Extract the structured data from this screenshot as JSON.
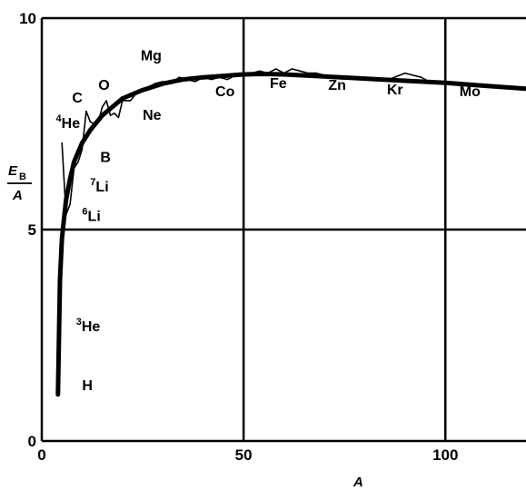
{
  "chart_data": {
    "type": "line",
    "xlabel": "A",
    "ylabel": "E_B / A",
    "ylabel_parts": {
      "numerator": "E",
      "subscript": "B",
      "denominator": "A"
    },
    "xlim": [
      0,
      120
    ],
    "ylim": [
      0,
      10
    ],
    "x_ticks": [
      "0",
      "50",
      "100"
    ],
    "y_ticks": [
      "0",
      "5",
      "10"
    ],
    "x_tick_values": [
      0,
      50,
      100
    ],
    "y_tick_values": [
      0,
      5,
      10
    ],
    "grid_x": [
      50,
      100
    ],
    "grid_y": [
      5
    ],
    "series": [
      {
        "style": "smooth-thick",
        "x": [
          4,
          4.5,
          5,
          6,
          7,
          8,
          10,
          12,
          15,
          20,
          25,
          30,
          35,
          40,
          50,
          55,
          60,
          70,
          80,
          90,
          100,
          110,
          120
        ],
        "y": [
          1.1,
          3.8,
          4.8,
          5.7,
          6.2,
          6.6,
          7.05,
          7.35,
          7.7,
          8.1,
          8.3,
          8.45,
          8.55,
          8.6,
          8.67,
          8.68,
          8.67,
          8.62,
          8.57,
          8.52,
          8.47,
          8.4,
          8.33
        ]
      },
      {
        "style": "thin-measured",
        "x": [
          5,
          6,
          7,
          8,
          9,
          10,
          11,
          12,
          13,
          14,
          15,
          16,
          17,
          18,
          19,
          20,
          22,
          24,
          26,
          28,
          30,
          32,
          34,
          36,
          38,
          40,
          42,
          44,
          46,
          48,
          50,
          52,
          54,
          56,
          58,
          60,
          62,
          64,
          66,
          68,
          70,
          80,
          86,
          90,
          94,
          96,
          100,
          110,
          120
        ],
        "y": [
          7.05,
          5.35,
          5.6,
          6.45,
          6.6,
          6.9,
          7.8,
          7.55,
          7.5,
          7.55,
          7.9,
          8.05,
          7.7,
          7.75,
          7.65,
          8.05,
          8.05,
          8.3,
          8.35,
          8.45,
          8.5,
          8.45,
          8.6,
          8.55,
          8.5,
          8.6,
          8.55,
          8.6,
          8.55,
          8.65,
          8.7,
          8.7,
          8.75,
          8.7,
          8.8,
          8.7,
          8.8,
          8.75,
          8.7,
          8.7,
          8.65,
          8.6,
          8.55,
          8.7,
          8.6,
          8.5,
          8.45,
          8.4,
          8.33
        ]
      }
    ],
    "annotations": [
      {
        "text": "H",
        "x": 10,
        "y": 1.2
      },
      {
        "text": "He",
        "sup": "3",
        "x": 8.5,
        "y": 2.6
      },
      {
        "text": "Li",
        "sup": "6",
        "x": 10,
        "y": 5.2
      },
      {
        "text": "Li",
        "sup": "7",
        "x": 12,
        "y": 5.9
      },
      {
        "text": "B",
        "x": 14.5,
        "y": 6.6
      },
      {
        "text": "He",
        "sup": "4",
        "x": 3.5,
        "y": 7.4
      },
      {
        "text": "C",
        "x": 7.5,
        "y": 8.0
      },
      {
        "text": "O",
        "x": 14,
        "y": 8.3
      },
      {
        "text": "Ne",
        "x": 25,
        "y": 7.6
      },
      {
        "text": "Mg",
        "x": 24.5,
        "y": 9.0
      },
      {
        "text": "Co",
        "x": 43,
        "y": 8.15
      },
      {
        "text": "Fe",
        "x": 56.5,
        "y": 8.35
      },
      {
        "text": "Zn",
        "x": 71,
        "y": 8.3
      },
      {
        "text": "Kr",
        "x": 85.5,
        "y": 8.2
      },
      {
        "text": "Mo",
        "x": 103.5,
        "y": 8.15
      }
    ]
  }
}
